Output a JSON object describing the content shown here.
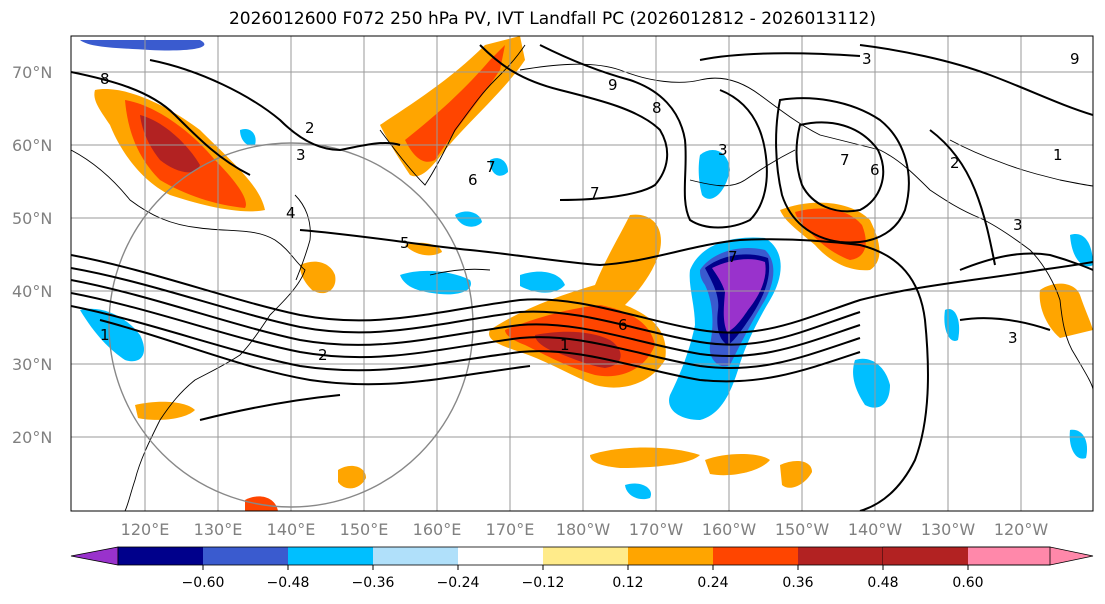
{
  "title": "2026012600 F072 250 hPa PV, IVT Landfall PC (2026012812 - 2026013112)",
  "map": {
    "lat_labels": [
      "70°N",
      "60°N",
      "50°N",
      "40°N",
      "30°N",
      "20°N"
    ],
    "lon_labels": [
      "120°E",
      "130°E",
      "140°E",
      "150°E",
      "160°E",
      "170°E",
      "180°W",
      "170°W",
      "160°W",
      "150°W",
      "140°W",
      "130°W",
      "120°W"
    ],
    "pv_contour_labels": [
      "8",
      "2",
      "3",
      "4",
      "5",
      "9",
      "8",
      "3",
      "7",
      "6",
      "7",
      "3",
      "7",
      "6",
      "2",
      "1",
      "3",
      "1",
      "7",
      "6",
      "1",
      "2",
      "3",
      "9"
    ]
  },
  "colorbar": {
    "ticks": [
      "−0.60",
      "−0.48",
      "−0.36",
      "−0.24",
      "−0.12",
      "0.12",
      "0.24",
      "0.36",
      "0.48",
      "0.60"
    ],
    "colors": [
      "#9932cc",
      "#00008b",
      "#3a5bcf",
      "#00bfff",
      "#b0e0fa",
      "#ffffff",
      "#ffeb8a",
      "#ffa500",
      "#ff4500",
      "#b22222",
      "#ff88aa"
    ]
  }
}
